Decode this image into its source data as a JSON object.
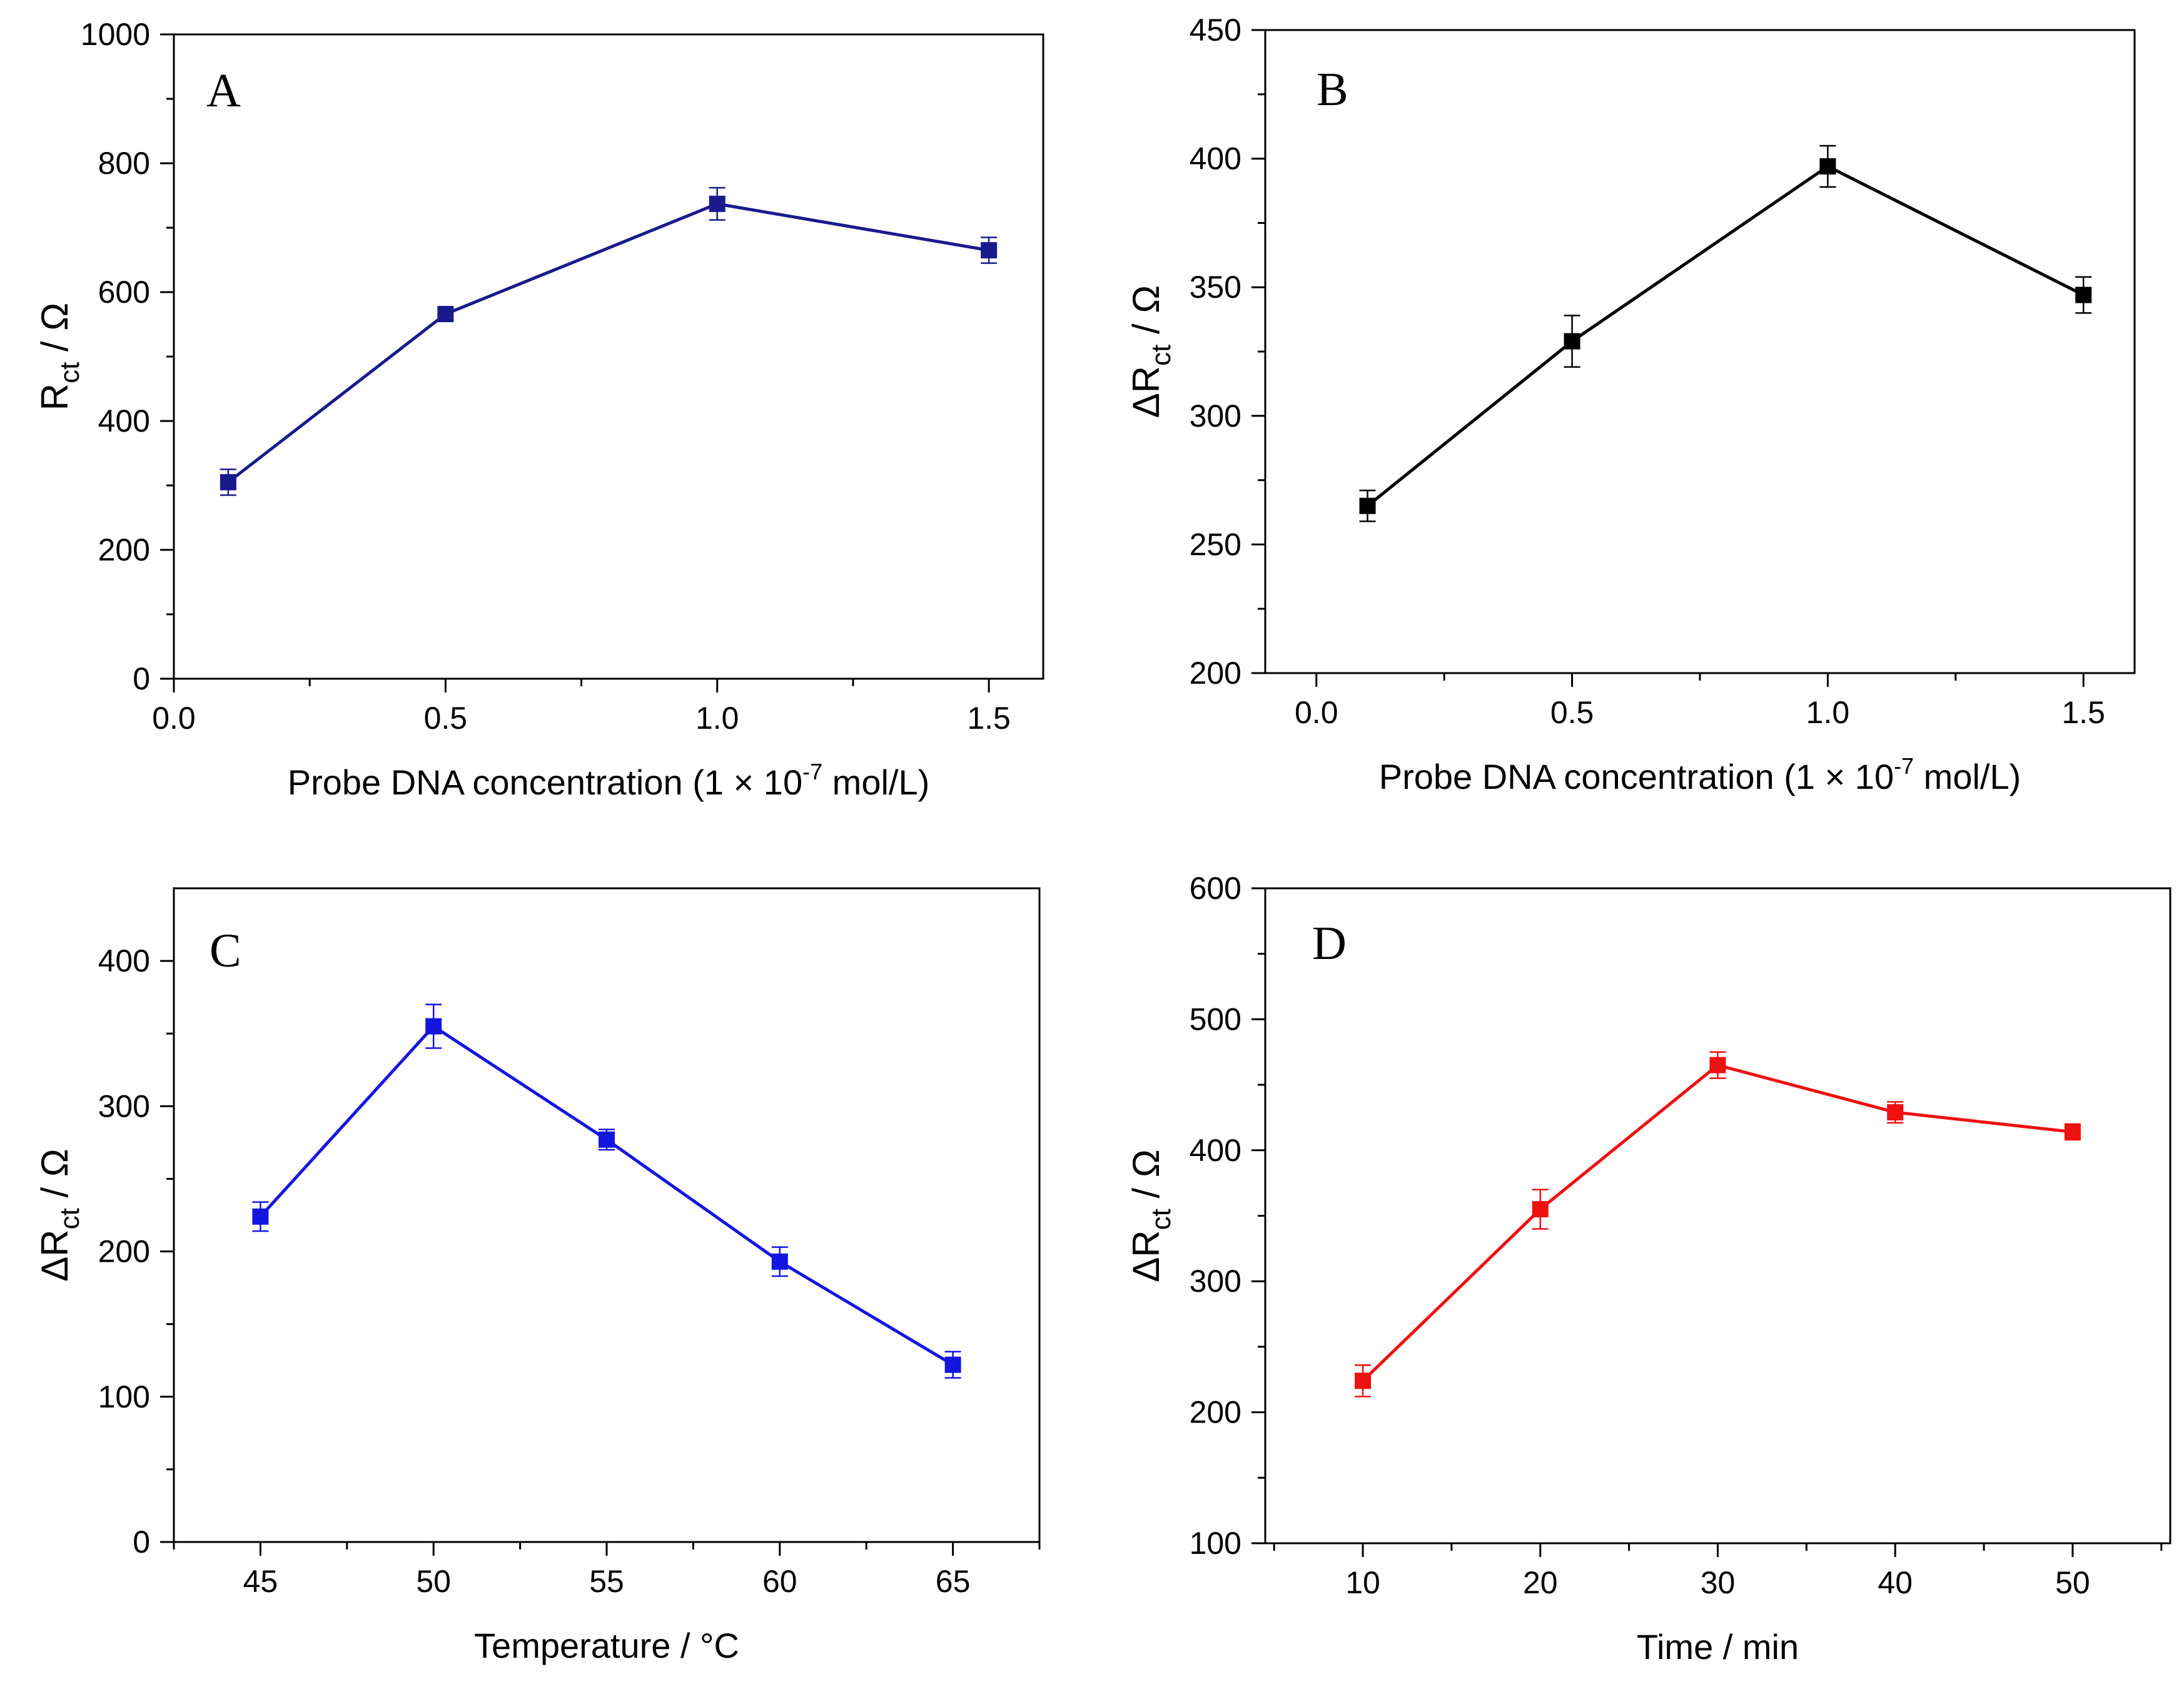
{
  "chart_data": [
    {
      "id": "A",
      "type": "line",
      "panel_label": "A",
      "color": "#1a1a8c",
      "x": [
        0.1,
        0.5,
        1.0,
        1.5
      ],
      "values": [
        305,
        566,
        737,
        665
      ],
      "errors": [
        20,
        8,
        25,
        20
      ],
      "xlim": [
        0.0,
        1.6
      ],
      "ylim": [
        0,
        1000
      ],
      "xticks": [
        0.0,
        0.5,
        1.0,
        1.5
      ],
      "xtick_labels": [
        "0.0",
        "0.5",
        "1.0",
        "1.5"
      ],
      "yticks": [
        0,
        200,
        400,
        600,
        800,
        1000
      ],
      "ytick_labels": [
        "0",
        "200",
        "400",
        "600",
        "800",
        "1000"
      ],
      "xlabel": "Probe DNA concentration (1 × 10",
      "xlabel_sup": "-7",
      "xlabel_tail": " mol/L)",
      "ylabel_prefix": "R",
      "ylabel_sub": "ct",
      "ylabel_tail": " / Ω"
    },
    {
      "id": "B",
      "type": "line",
      "panel_label": "B",
      "color": "#000000",
      "x": [
        0.1,
        0.5,
        1.0,
        1.5
      ],
      "values": [
        265,
        329,
        397,
        347
      ],
      "errors": [
        6,
        10,
        8,
        7
      ],
      "xlim": [
        -0.1,
        1.6
      ],
      "ylim": [
        200,
        450
      ],
      "xticks": [
        0.0,
        0.5,
        1.0,
        1.5
      ],
      "xtick_labels": [
        "0.0",
        "0.5",
        "1.0",
        "1.5"
      ],
      "yticks": [
        200,
        250,
        300,
        350,
        400,
        450
      ],
      "ytick_labels": [
        "200",
        "250",
        "300",
        "350",
        "400",
        "450"
      ],
      "xlabel": "Probe DNA concentration (1 × 10",
      "xlabel_sup": "-7",
      "xlabel_tail": " mol/L)",
      "ylabel_prefix": "ΔR",
      "ylabel_sub": "ct",
      "ylabel_tail": " / Ω"
    },
    {
      "id": "C",
      "type": "line",
      "panel_label": "C",
      "color": "#1515e0",
      "x": [
        45,
        50,
        55,
        60,
        65
      ],
      "values": [
        224,
        355,
        277,
        193,
        122
      ],
      "errors": [
        10,
        15,
        7,
        10,
        9
      ],
      "xlim": [
        42.5,
        67.5
      ],
      "ylim": [
        0,
        450
      ],
      "xticks": [
        45,
        50,
        55,
        60,
        65
      ],
      "xtick_labels": [
        "45",
        "50",
        "55",
        "60",
        "65"
      ],
      "yticks": [
        0,
        100,
        200,
        300,
        400
      ],
      "ytick_labels": [
        "0",
        "100",
        "200",
        "300",
        "400"
      ],
      "xlabel": "Temperature / °C",
      "xlabel_sup": "",
      "xlabel_tail": "",
      "ylabel_prefix": "ΔR",
      "ylabel_sub": "ct",
      "ylabel_tail": " / Ω"
    },
    {
      "id": "D",
      "type": "line",
      "panel_label": "D",
      "color": "#ee1111",
      "x": [
        10,
        20,
        30,
        40,
        50
      ],
      "values": [
        224,
        355,
        465,
        429,
        414
      ],
      "errors": [
        12,
        15,
        10,
        8,
        6
      ],
      "xlim": [
        4.5,
        55.5
      ],
      "ylim": [
        100,
        600
      ],
      "xticks": [
        10,
        20,
        30,
        40,
        50
      ],
      "xtick_labels": [
        "10",
        "20",
        "30",
        "40",
        "50"
      ],
      "yticks": [
        100,
        200,
        300,
        400,
        500,
        600
      ],
      "ytick_labels": [
        "100",
        "200",
        "300",
        "400",
        "500",
        "600"
      ],
      "xlabel": "Time / min",
      "xlabel_sup": "",
      "xlabel_tail": "",
      "ylabel_prefix": "ΔR",
      "ylabel_sub": "ct",
      "ylabel_tail": " / Ω"
    }
  ]
}
